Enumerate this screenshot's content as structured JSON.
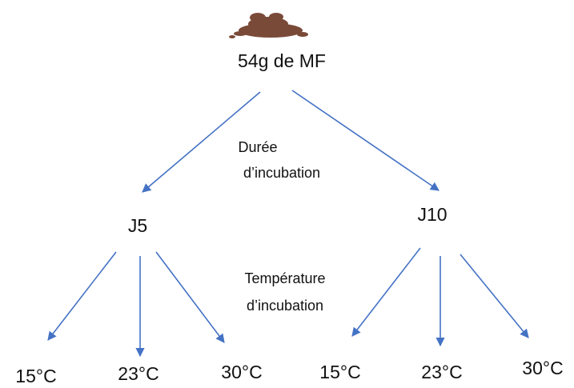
{
  "root": {
    "label": "54g de MF"
  },
  "edge_labels": [
    {
      "lines": [
        "Durée",
        "d’incubation"
      ]
    },
    {
      "lines": [
        "Température",
        "d’incubation"
      ]
    }
  ],
  "nodes": [
    {
      "label": "J5",
      "children": [
        "15°C",
        "23°C",
        "30°C"
      ]
    },
    {
      "label": "J10",
      "children": [
        "15°C",
        "23°C",
        "30°C"
      ]
    }
  ]
}
